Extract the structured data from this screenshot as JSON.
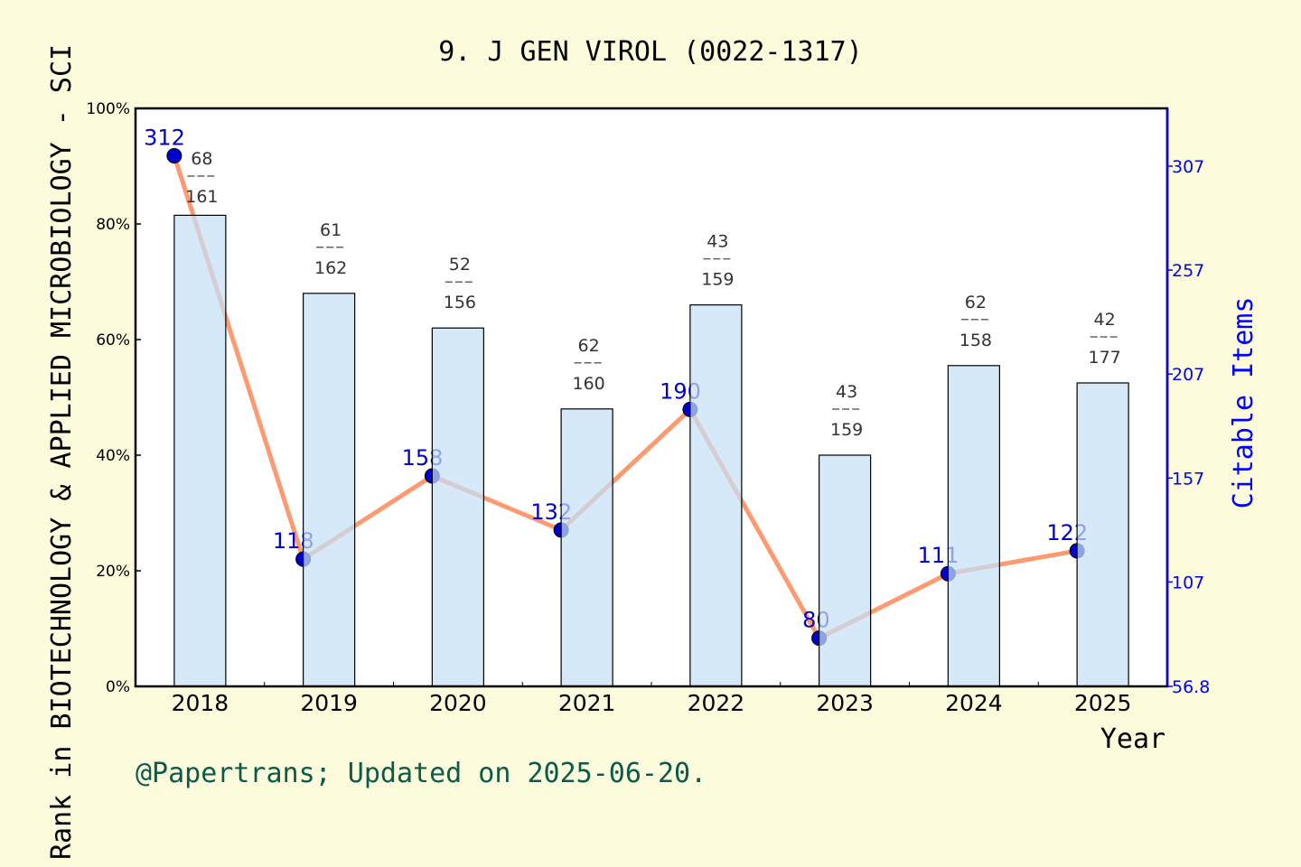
{
  "chart_data": {
    "type": "bar+line",
    "title": "9. J GEN VIROL (0022-1317)",
    "xlabel": "Year",
    "ylabel_left": "Rank in BIOTECHNOLOGY & APPLIED MICROBIOLOGY - SCI",
    "ylabel_right": "Citable Items",
    "categories": [
      "2018",
      "2019",
      "2020",
      "2021",
      "2022",
      "2023",
      "2024",
      "2025"
    ],
    "left_axis": {
      "ylim": [
        0,
        100
      ],
      "ticks": [
        "0%",
        "20%",
        "40%",
        "60%",
        "80%",
        "100%"
      ],
      "tick_values": [
        0,
        20,
        40,
        60,
        80,
        100
      ]
    },
    "right_axis": {
      "ylim": [
        56.8,
        334.8
      ],
      "ticks": [
        "56.8",
        "107",
        "157",
        "207",
        "257",
        "307"
      ],
      "tick_values": [
        56.8,
        107,
        157,
        207,
        257,
        307
      ]
    },
    "bars": {
      "values_percent": [
        81.5,
        68,
        62,
        48,
        66,
        40,
        55.5,
        52.5
      ],
      "rank": [
        "68",
        "61",
        "52",
        "62",
        "43",
        "43",
        "62",
        "42"
      ],
      "total": [
        "161",
        "162",
        "156",
        "160",
        "159",
        "159",
        "158",
        "177"
      ],
      "color": "#c5e0f7"
    },
    "line": {
      "values": [
        312,
        118,
        158,
        132,
        190,
        80,
        111,
        122
      ],
      "labels": [
        "312",
        "118",
        "158",
        "132",
        "190",
        "80",
        "111",
        "122"
      ],
      "line_color": "#ff9a70",
      "marker_color": "#0000cc"
    },
    "grid": false,
    "footer": "@Papertrans; Updated on 2025-06-20."
  },
  "colors": {
    "background": "#fcfcdc",
    "plot_bg": "#ffffff",
    "right_axis": "#0000ff",
    "footer": "#0b5a4a"
  }
}
